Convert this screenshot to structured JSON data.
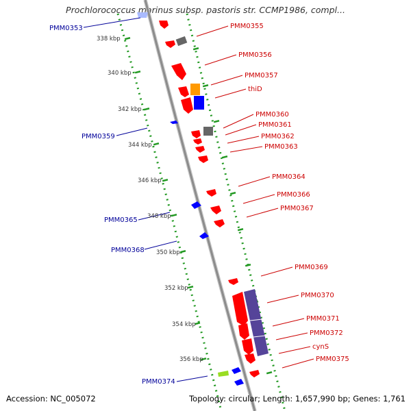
{
  "title": "Prochlorococcus marinus subsp. pastoris str. CCMP1986, compl...",
  "footer": {
    "accession": "Accession: NC_005072",
    "stats": "Topology: circular; Length: 1,657,990 bp; Genes: 1,761"
  },
  "colors": {
    "backbone": "#8c8c8c",
    "ticks": "#229922",
    "forward_feature": "#ff0000",
    "reverse_feature": "#0000ff",
    "pseudo_feature": "#666666",
    "other_feature": "#ff9900",
    "rna_feature": "#99dd22",
    "region_feature": "#554499",
    "forward_label": "#cc0000",
    "reverse_label": "#000099"
  },
  "scale_labels": [
    "338 kbp",
    "340 kbp",
    "342 kbp",
    "344 kbp",
    "346 kbp",
    "348 kbp",
    "350 kbp",
    "352 kbp",
    "354 kbp",
    "356 kbp"
  ],
  "genes_forward": [
    "PMM0355",
    "PMM0356",
    "PMM0357",
    "thiD",
    "PMM0360",
    "PMM0361",
    "PMM0362",
    "PMM0363",
    "PMM0364",
    "PMM0366",
    "PMM0367",
    "PMM0369",
    "PMM0370",
    "PMM0371",
    "PMM0372",
    "cynS",
    "PMM0375"
  ],
  "genes_reverse": [
    "PMM0353",
    "PMM0359",
    "PMM0365",
    "PMM0368",
    "PMM0374"
  ]
}
